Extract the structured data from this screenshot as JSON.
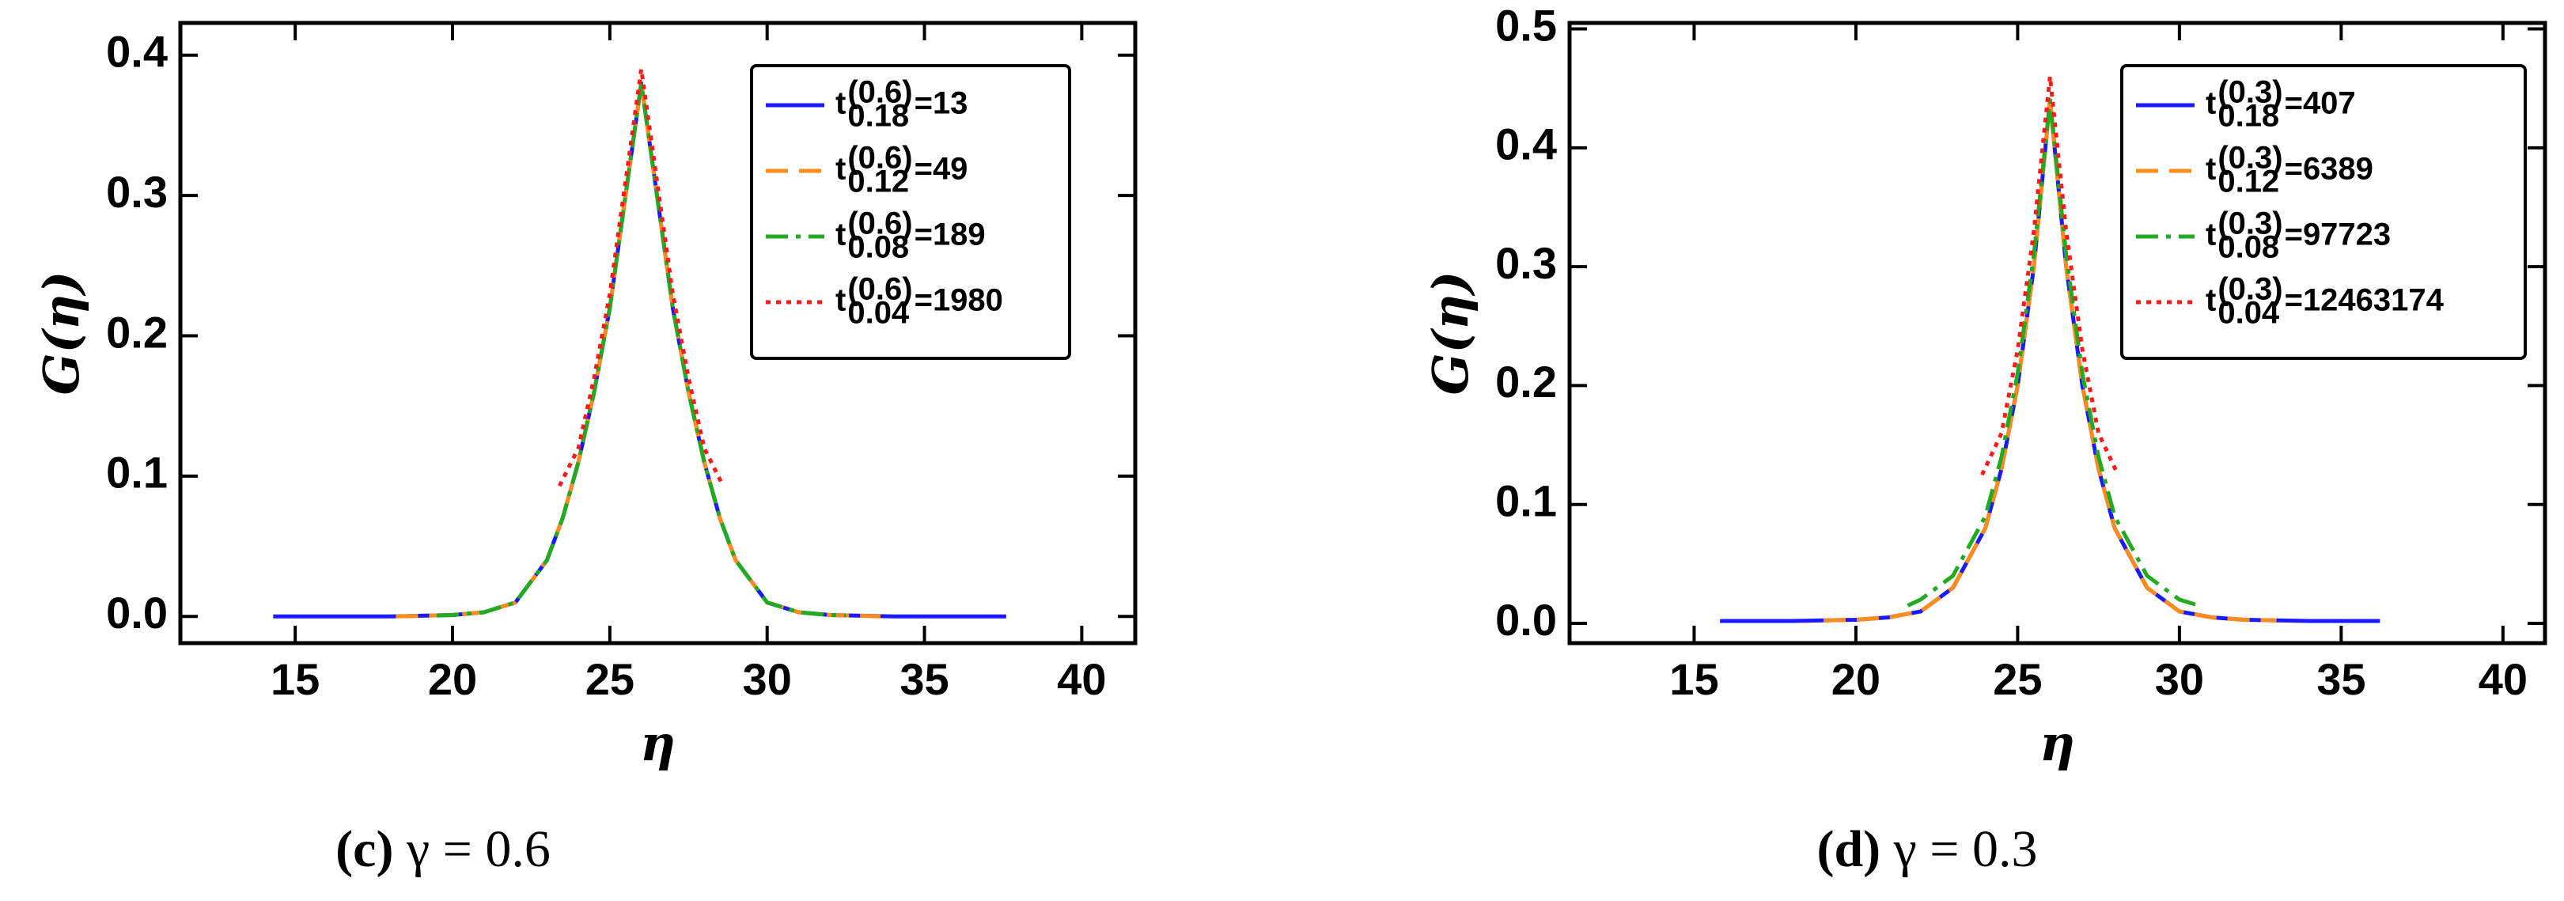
{
  "chart_data": [
    {
      "type": "line",
      "caption_label": "(c)",
      "caption": "γ = 0.6",
      "xlabel": "η",
      "ylabel": "G(η)",
      "xlim": [
        11.35,
        41.7
      ],
      "ylim": [
        -0.019,
        0.423
      ],
      "xticks": [
        15,
        20,
        25,
        30,
        35,
        40
      ],
      "yticks": [
        {
          "value": 0,
          "label": "0.0"
        },
        0.1,
        0.2,
        0.3,
        0.4
      ],
      "legend": "upper right",
      "series": [
        {
          "name": {
            "base": "t",
            "sup": "(0.6)",
            "sub": "0.18",
            "rest": "=13"
          },
          "color": "#1a1aff",
          "dash": "solid",
          "x": [
            14.3,
            15,
            16,
            17,
            18,
            19,
            20,
            21,
            22,
            23,
            23.5,
            24,
            24.5,
            25,
            25.5,
            26,
            26.5,
            27,
            27.5,
            28,
            28.5,
            29,
            30,
            31,
            32,
            33,
            34,
            35,
            36,
            37,
            37.6
          ],
          "values": [
            0,
            0,
            0,
            0,
            0,
            0.0005,
            0.001,
            0.003,
            0.01,
            0.04,
            0.07,
            0.11,
            0.16,
            0.22,
            0.3,
            0.38,
            0.3,
            0.22,
            0.16,
            0.11,
            0.07,
            0.04,
            0.01,
            0.003,
            0.001,
            0.0005,
            0,
            0,
            0,
            0,
            0
          ]
        },
        {
          "name": {
            "base": "t",
            "sup": "(0.6)",
            "sub": "0.12",
            "rest": "=49"
          },
          "color": "#ff8c1a",
          "dash": "dashed",
          "x": [
            18.2,
            19,
            20,
            21,
            22,
            23,
            23.5,
            24,
            24.5,
            25,
            25.5,
            26,
            26.5,
            27,
            27.5,
            28,
            28.5,
            29,
            30,
            31,
            32,
            33,
            33.6
          ],
          "values": [
            0,
            0.0005,
            0.001,
            0.003,
            0.01,
            0.04,
            0.07,
            0.11,
            0.16,
            0.22,
            0.3,
            0.38,
            0.3,
            0.22,
            0.16,
            0.11,
            0.07,
            0.04,
            0.01,
            0.003,
            0.001,
            0.0005,
            0
          ]
        },
        {
          "name": {
            "base": "t",
            "sup": "(0.6)",
            "sub": "0.08",
            "rest": "=189"
          },
          "color": "#22aa22",
          "dash": "dashdot",
          "x": [
            19.5,
            20,
            21,
            22,
            23,
            23.5,
            24,
            24.5,
            25,
            25.5,
            26,
            26.5,
            27,
            27.5,
            28,
            28.5,
            29,
            30,
            31,
            32,
            32.5
          ],
          "values": [
            0.0007,
            0.001,
            0.003,
            0.01,
            0.04,
            0.07,
            0.11,
            0.16,
            0.22,
            0.3,
            0.38,
            0.3,
            0.22,
            0.16,
            0.11,
            0.07,
            0.04,
            0.01,
            0.003,
            0.001,
            0.0007
          ]
        },
        {
          "name": {
            "base": "t",
            "sup": "(0.6)",
            "sub": "0.04",
            "rest": "=1980"
          },
          "color": "#ff1a1a",
          "dash": "dotted",
          "x": [
            23.4,
            24,
            24.5,
            25,
            25.5,
            26,
            26.5,
            27,
            27.5,
            28,
            28.6
          ],
          "values": [
            0.093,
            0.12,
            0.17,
            0.23,
            0.31,
            0.39,
            0.31,
            0.23,
            0.17,
            0.12,
            0.093
          ]
        }
      ]
    },
    {
      "type": "line",
      "caption_label": "(d)",
      "caption": "γ = 0.3",
      "xlabel": "η",
      "ylabel": "G(η)",
      "xlim": [
        11.15,
        41.3
      ],
      "ylim": [
        -0.0166,
        0.505
      ],
      "xticks": [
        15,
        20,
        25,
        30,
        35,
        40
      ],
      "yticks": [
        {
          "value": 0,
          "label": "0.0"
        },
        0.1,
        0.2,
        0.3,
        0.4,
        0.5
      ],
      "legend": "upper right",
      "series": [
        {
          "name": {
            "base": "t",
            "sup": "(0.3)",
            "sub": "0.18",
            "rest": "=407"
          },
          "color": "#1a1aff",
          "dash": "solid",
          "x": [
            15.8,
            17,
            18,
            19,
            20,
            21,
            22,
            23,
            24,
            24.5,
            25,
            25.5,
            26,
            26.5,
            27,
            27.5,
            28,
            29,
            30,
            31,
            32,
            33,
            34,
            35,
            36.2
          ],
          "values": [
            0.002,
            0.002,
            0.002,
            0.0025,
            0.003,
            0.005,
            0.01,
            0.03,
            0.08,
            0.13,
            0.2,
            0.3,
            0.44,
            0.3,
            0.2,
            0.13,
            0.08,
            0.03,
            0.01,
            0.005,
            0.003,
            0.0025,
            0.002,
            0.002,
            0.002
          ]
        },
        {
          "name": {
            "base": "t",
            "sup": "(0.3)",
            "sub": "0.12",
            "rest": "=6389"
          },
          "color": "#ff8c1a",
          "dash": "dashed",
          "x": [
            19,
            20,
            21,
            22,
            23,
            24,
            24.5,
            25,
            25.5,
            26,
            26.5,
            27,
            27.5,
            28,
            29,
            30,
            31,
            32,
            33
          ],
          "values": [
            0.0025,
            0.003,
            0.005,
            0.01,
            0.03,
            0.08,
            0.13,
            0.2,
            0.3,
            0.44,
            0.3,
            0.2,
            0.13,
            0.08,
            0.03,
            0.01,
            0.005,
            0.003,
            0.0025
          ]
        },
        {
          "name": {
            "base": "t",
            "sup": "(0.3)",
            "sub": "0.08",
            "rest": "=97723"
          },
          "color": "#22aa22",
          "dash": "dashdot",
          "x": [
            21.6,
            22,
            23,
            24,
            24.5,
            25,
            25.5,
            26,
            26.5,
            27,
            27.5,
            28,
            29,
            30,
            30.6
          ],
          "values": [
            0.015,
            0.02,
            0.04,
            0.09,
            0.14,
            0.21,
            0.31,
            0.44,
            0.31,
            0.21,
            0.14,
            0.09,
            0.04,
            0.02,
            0.015
          ]
        },
        {
          "name": {
            "base": "t",
            "sup": "(0.3)",
            "sub": "0.04",
            "rest": "=12463174"
          },
          "color": "#ff1a1a",
          "dash": "dotted",
          "x": [
            23.9,
            24.5,
            25,
            25.5,
            26,
            26.5,
            27,
            27.5,
            28.1
          ],
          "values": [
            0.125,
            0.16,
            0.23,
            0.33,
            0.46,
            0.33,
            0.23,
            0.16,
            0.125
          ]
        }
      ]
    }
  ]
}
